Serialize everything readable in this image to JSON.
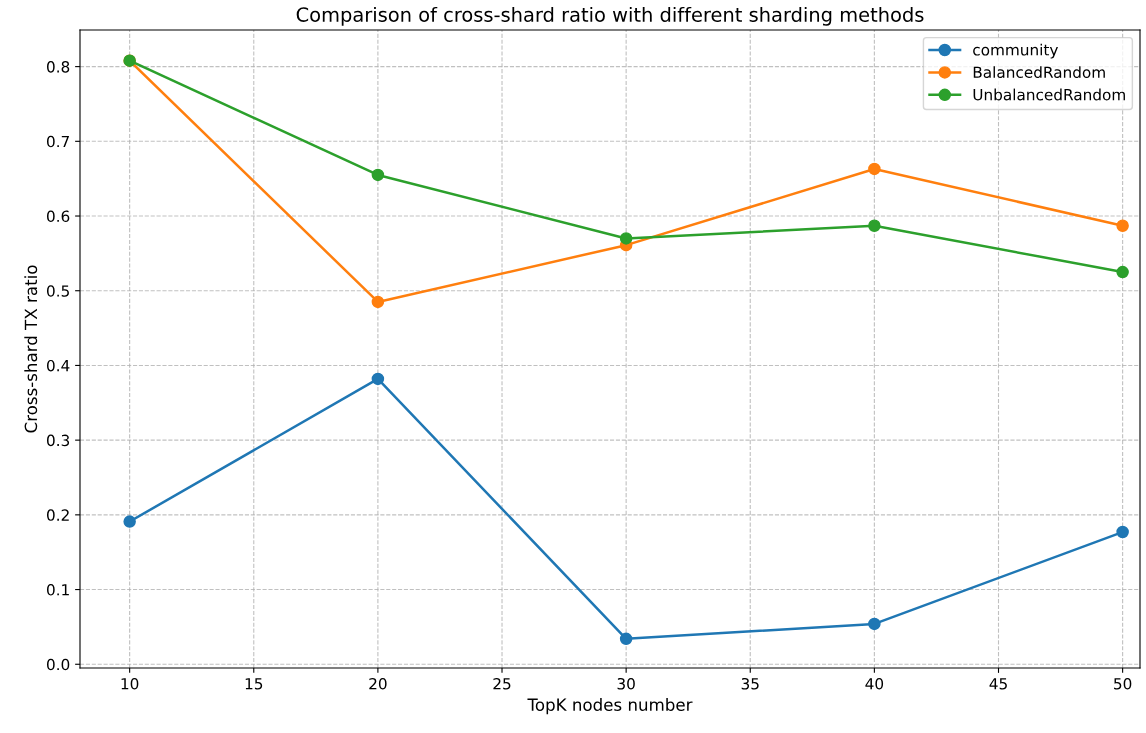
{
  "chart_data": {
    "type": "line",
    "title": "Comparison of cross-shard ratio with different sharding methods",
    "xlabel": "TopK nodes number",
    "ylabel": "Cross-shard TX ratio",
    "x": [
      10,
      20,
      30,
      40,
      50
    ],
    "series": [
      {
        "name": "community",
        "color": "#1f77b4",
        "values": [
          0.191,
          0.382,
          0.034,
          0.054,
          0.177
        ]
      },
      {
        "name": "BalancedRandom",
        "color": "#ff7f0e",
        "values": [
          0.808,
          0.485,
          0.561,
          0.663,
          0.587
        ]
      },
      {
        "name": "UnbalancedRandom",
        "color": "#2ca02c",
        "values": [
          0.808,
          0.655,
          0.57,
          0.587,
          0.525
        ]
      }
    ],
    "xlim": [
      8,
      50.7
    ],
    "ylim": [
      -0.005,
      0.849
    ],
    "xticks": [
      10,
      15,
      20,
      25,
      30,
      35,
      40,
      45,
      50
    ],
    "yticks": [
      {
        "value": 0,
        "label": "0.0"
      },
      0.1,
      0.2,
      0.3,
      0.4,
      0.5,
      0.6,
      0.7,
      0.8
    ],
    "grid": true,
    "legend": "top right",
    "marker": "circle",
    "line_style": "solid"
  }
}
